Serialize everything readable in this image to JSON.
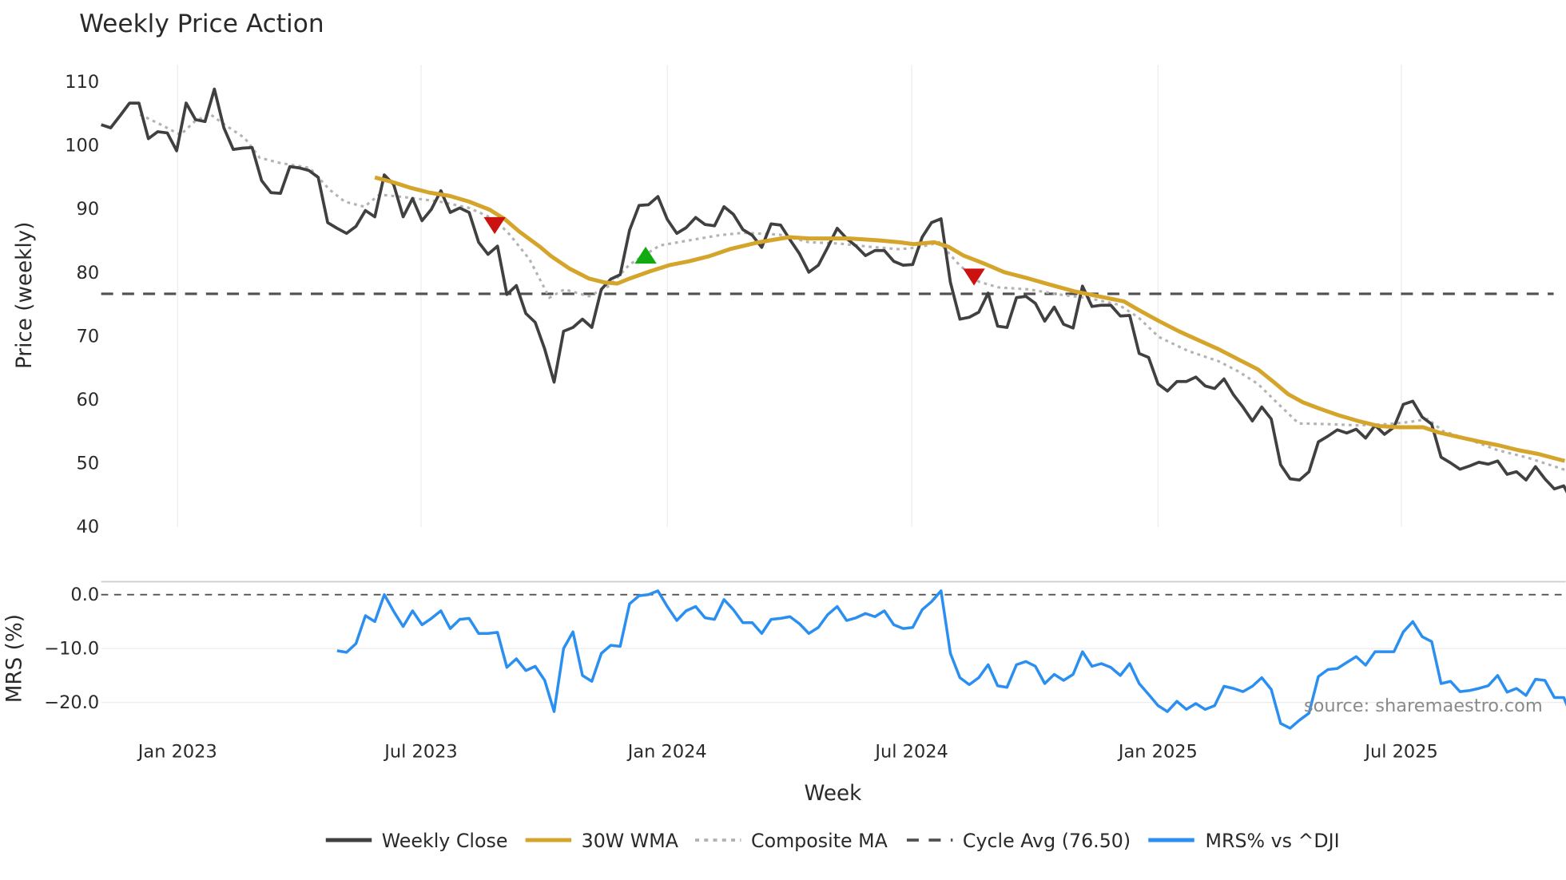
{
  "chart_data": {
    "type": "line",
    "title": "Weekly Price Action",
    "xlabel": "Week",
    "watermark": "source: sharemaestro.com",
    "x_ticks": [
      {
        "label": "Jan 2023",
        "week": 8.1
      },
      {
        "label": "Jul 2023",
        "week": 33.9
      },
      {
        "label": "Jan 2024",
        "week": 60.0
      },
      {
        "label": "Jul 2024",
        "week": 85.9
      },
      {
        "label": "Jan 2025",
        "week": 112.0
      },
      {
        "label": "Jul 2025",
        "week": 137.8
      }
    ],
    "xlim": [
      0,
      155.2
    ],
    "price_panel": {
      "ylabel": "Price (weekly)",
      "ylim": [
        40,
        110
      ],
      "y_ticks": [
        "40",
        "50",
        "60",
        "70",
        "80",
        "90",
        "100",
        "110"
      ],
      "weekly_close": [
        103.1,
        102.6,
        104.5,
        106.5,
        106.5,
        100.9,
        102,
        101.8,
        99,
        106.5,
        103.9,
        103.6,
        108.7,
        102.6,
        99.2,
        99.4,
        99.5,
        94.3,
        92.4,
        92.3,
        96.5,
        96.3,
        95.9,
        94.8,
        87.7,
        86.8,
        86,
        87.1,
        89.6,
        88.6,
        95.2,
        93.7,
        88.6,
        91.5,
        88,
        89.8,
        92.7,
        89.3,
        90,
        89.3,
        84.6,
        82.7,
        84,
        76.4,
        77.8,
        73.4,
        72,
        67.8,
        62.6,
        70.6,
        71.2,
        72.5,
        71.2,
        77.2,
        78.8,
        79.5,
        86.5,
        90.4,
        90.5,
        91.8,
        88.2,
        86,
        86.9,
        88.5,
        87.4,
        87.2,
        90.2,
        89,
        86.6,
        85.7,
        83.8,
        87.5,
        87.3,
        85,
        82.8,
        79.9,
        81,
        83.8,
        86.8,
        85.2,
        84,
        82.5,
        83.3,
        83.3,
        81.6,
        81,
        81.1,
        85.4,
        87.7,
        88.3,
        78.3,
        72.5,
        72.8,
        73.6,
        76.6,
        71.4,
        71.2,
        75.9,
        76.1,
        75,
        72.2,
        74.4,
        71.7,
        71.1,
        77.7,
        74.5,
        74.7,
        74.7,
        73,
        73.1,
        67.1,
        66.5,
        62.3,
        61.2,
        62.7,
        62.7,
        63.4,
        62,
        61.6,
        63.1,
        60.6,
        58.7,
        56.5,
        58.7,
        56.8,
        49.6,
        47.4,
        47.2,
        48.5,
        53.2,
        54.1,
        55.1,
        54.6,
        55.2,
        53.8,
        55.8,
        54.4,
        55.5,
        59.1,
        59.6,
        57.1,
        56,
        50.8,
        49.9,
        48.9,
        49.4,
        50,
        49.7,
        50.2,
        48.1,
        48.5,
        47.2,
        49.3,
        47.4,
        45.8,
        46.3,
        43.4
      ],
      "wma_30w": [
        [
          29,
          94.8
        ],
        [
          30.8,
          94.1
        ],
        [
          32.7,
          93.2
        ],
        [
          34.8,
          92.4
        ],
        [
          36.9,
          91.9
        ],
        [
          39,
          91
        ],
        [
          41.2,
          89.7
        ],
        [
          42.8,
          88.2
        ],
        [
          44.3,
          86.3
        ],
        [
          46.5,
          83.9
        ],
        [
          47.7,
          82.4
        ],
        [
          49.6,
          80.5
        ],
        [
          51.7,
          78.9
        ],
        [
          53.3,
          78.3
        ],
        [
          54.7,
          78.1
        ],
        [
          56,
          78.9
        ],
        [
          58.1,
          80
        ],
        [
          60.2,
          81
        ],
        [
          62.3,
          81.6
        ],
        [
          64.4,
          82.4
        ],
        [
          66.6,
          83.5
        ],
        [
          69.7,
          84.6
        ],
        [
          72.9,
          85.4
        ],
        [
          75,
          85.2
        ],
        [
          79.3,
          85.2
        ],
        [
          82.4,
          84.9
        ],
        [
          84.6,
          84.6
        ],
        [
          86.1,
          84.3
        ],
        [
          88.3,
          84.6
        ],
        [
          89.8,
          83.9
        ],
        [
          91.4,
          82.5
        ],
        [
          93.5,
          81.3
        ],
        [
          95.7,
          79.9
        ],
        [
          98.3,
          78.9
        ],
        [
          100.4,
          78
        ],
        [
          103.1,
          76.9
        ],
        [
          105.7,
          76.1
        ],
        [
          108.4,
          75.3
        ],
        [
          109.9,
          74
        ],
        [
          112.1,
          72.2
        ],
        [
          114.2,
          70.6
        ],
        [
          116.3,
          69.2
        ],
        [
          118.4,
          67.8
        ],
        [
          120.5,
          66.2
        ],
        [
          122.6,
          64.6
        ],
        [
          124.2,
          62.7
        ],
        [
          125.8,
          60.7
        ],
        [
          127.4,
          59.4
        ],
        [
          129,
          58.5
        ],
        [
          131.1,
          57.4
        ],
        [
          133.2,
          56.5
        ],
        [
          135.4,
          55.7
        ],
        [
          137.5,
          55.5
        ],
        [
          140.1,
          55.5
        ],
        [
          141.7,
          54.7
        ],
        [
          143.8,
          54
        ],
        [
          145.9,
          53.3
        ],
        [
          148,
          52.7
        ],
        [
          150.2,
          51.9
        ],
        [
          152.3,
          51.3
        ],
        [
          155.1,
          50.2
        ]
      ],
      "composite_ma": [
        [
          4.1,
          104.7
        ],
        [
          6.2,
          103.2
        ],
        [
          8.4,
          101.5
        ],
        [
          9.9,
          103.6
        ],
        [
          11.5,
          104.8
        ],
        [
          13.1,
          103.1
        ],
        [
          15.2,
          101
        ],
        [
          16.8,
          97.9
        ],
        [
          18.9,
          97.1
        ],
        [
          22.1,
          96.3
        ],
        [
          24.2,
          92.9
        ],
        [
          25.8,
          91
        ],
        [
          27.9,
          90.2
        ],
        [
          29.5,
          92.1
        ],
        [
          32.7,
          91.6
        ],
        [
          35.9,
          91
        ],
        [
          39,
          90
        ],
        [
          41.7,
          88.2
        ],
        [
          43.3,
          85.8
        ],
        [
          45.4,
          81.9
        ],
        [
          47.5,
          75.9
        ],
        [
          49.1,
          77.2
        ],
        [
          51.7,
          76.1
        ],
        [
          53.9,
          77.8
        ],
        [
          56,
          81.1
        ],
        [
          59.2,
          84.1
        ],
        [
          62.3,
          84.9
        ],
        [
          65.5,
          85.7
        ],
        [
          68.1,
          86.1
        ],
        [
          71.9,
          85.8
        ],
        [
          75,
          84.6
        ],
        [
          78.2,
          84.4
        ],
        [
          81.4,
          83.9
        ],
        [
          84.6,
          83.5
        ],
        [
          86.7,
          83.8
        ],
        [
          88.8,
          84.6
        ],
        [
          90.9,
          81.1
        ],
        [
          93,
          78.4
        ],
        [
          95.1,
          77.5
        ],
        [
          98.3,
          77.2
        ],
        [
          101.5,
          76.4
        ],
        [
          104.7,
          75.8
        ],
        [
          107.8,
          74.8
        ],
        [
          109.9,
          72.8
        ],
        [
          112.1,
          69.7
        ],
        [
          115.2,
          67.5
        ],
        [
          118.4,
          65.9
        ],
        [
          120.5,
          64.3
        ],
        [
          122.6,
          62.3
        ],
        [
          124.8,
          59.1
        ],
        [
          126.9,
          56.1
        ],
        [
          130.1,
          56
        ],
        [
          133.2,
          55.8
        ],
        [
          136.4,
          56
        ],
        [
          138.5,
          56.3
        ],
        [
          140.6,
          56.8
        ],
        [
          142.2,
          54.9
        ],
        [
          144.9,
          53.6
        ],
        [
          148,
          51.9
        ],
        [
          151.2,
          50.7
        ],
        [
          155.1,
          48.8
        ]
      ],
      "cycle_avg": 76.5,
      "signals": [
        {
          "type": "sell",
          "week": 41.7,
          "price": 87.3,
          "color": "#cc1111"
        },
        {
          "type": "buy",
          "week": 57.7,
          "price": 82.5,
          "color": "#11aa11"
        },
        {
          "type": "sell",
          "week": 92.5,
          "price": 79.2,
          "color": "#cc1111"
        }
      ]
    },
    "mrs_panel": {
      "ylabel": "MRS (%)",
      "ylim": [
        -25.5,
        2.5
      ],
      "y_ticks": [
        "0.0",
        "−10.0",
        "−20.0"
      ],
      "y_tick_values": [
        0,
        -10,
        -20
      ],
      "start_week": 25,
      "values": [
        -10.4,
        -10.7,
        -9.1,
        -3.9,
        -5,
        0,
        -3.1,
        -5.9,
        -3,
        -5.6,
        -4.4,
        -3,
        -6.3,
        -4.6,
        -4.4,
        -7.2,
        -7.2,
        -7,
        -13.5,
        -11.9,
        -14.1,
        -13.3,
        -15.9,
        -21.7,
        -10,
        -6.9,
        -15,
        -16.1,
        -10.9,
        -9.4,
        -9.6,
        -1.7,
        -0.2,
        0,
        0.7,
        -2.2,
        -4.8,
        -3,
        -2.2,
        -4.3,
        -4.6,
        -0.9,
        -2.8,
        -5.2,
        -5.2,
        -7.2,
        -4.6,
        -4.4,
        -4.1,
        -5.4,
        -7.2,
        -6.1,
        -3.7,
        -2.2,
        -4.8,
        -4.3,
        -3.5,
        -4.1,
        -3,
        -5.6,
        -6.3,
        -6.1,
        -2.8,
        -1.3,
        0.7,
        -10.9,
        -15.4,
        -16.7,
        -15.4,
        -13,
        -16.9,
        -17.2,
        -13,
        -12.4,
        -13.3,
        -16.5,
        -14.8,
        -15.9,
        -14.8,
        -10.6,
        -13.3,
        -12.8,
        -13.5,
        -15,
        -12.8,
        -16.5,
        -18.5,
        -20.6,
        -21.7,
        -19.8,
        -21.3,
        -20.2,
        -21.3,
        -20.6,
        -17,
        -17.4,
        -18,
        -17,
        -15.4,
        -17.6,
        -23.9,
        -24.8,
        -23.3,
        -22,
        -15.2,
        -13.9,
        -13.7,
        -12.6,
        -11.5,
        -13.1,
        -10.6,
        -10.6,
        -10.6,
        -6.9,
        -5,
        -7.8,
        -8.7,
        -16.5,
        -16.1,
        -18,
        -17.8,
        -17.4,
        -16.9,
        -15,
        -18.1,
        -17.4,
        -18.7,
        -15.7,
        -15.9,
        -19.1,
        -19.1,
        -23.3
      ]
    },
    "legend": {
      "placement": "bottom",
      "entries": [
        {
          "label": "Weekly Close",
          "color": "#404040",
          "style": "solid"
        },
        {
          "label": "30W WMA",
          "color": "#d4a52a",
          "style": "solid"
        },
        {
          "label": "Composite MA",
          "color": "#b0b0b0",
          "style": "dotted"
        },
        {
          "label": "Cycle Avg (76.50)",
          "color": "#505050",
          "style": "dashed"
        },
        {
          "label": "MRS% vs ^DJI",
          "color": "#2a8ff0",
          "style": "solid"
        }
      ]
    }
  }
}
